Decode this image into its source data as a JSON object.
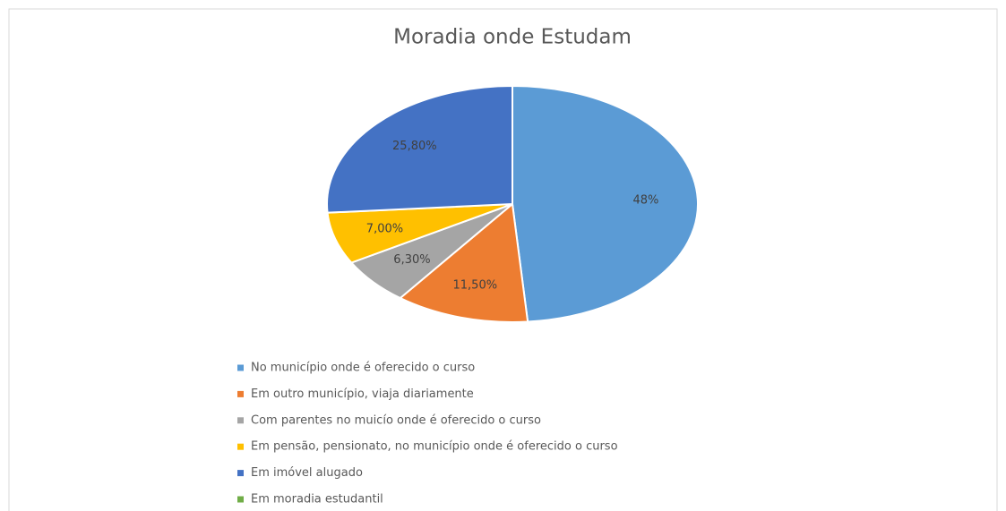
{
  "chart_data": {
    "type": "pie",
    "title": "Moradia onde Estudam",
    "categories": [
      "No município onde é oferecido o curso",
      "Em outro município, viaja diariamente",
      "Com parentes no muicío onde é oferecido o curso",
      "Em pensão, pensionato, no município onde é oferecido o curso",
      "Em imóvel alugado",
      "Em moradia estudantil"
    ],
    "values": [
      48,
      11.5,
      6.3,
      7.0,
      25.8,
      0
    ],
    "value_labels": [
      "48%",
      "11,50%",
      "6,30%",
      "7,00%",
      "25,80%",
      null
    ],
    "colors": [
      "#5B9BD5",
      "#ED7D31",
      "#A5A5A5",
      "#FFC000",
      "#4472C4",
      "#70AD47"
    ],
    "legend": "bottom"
  }
}
